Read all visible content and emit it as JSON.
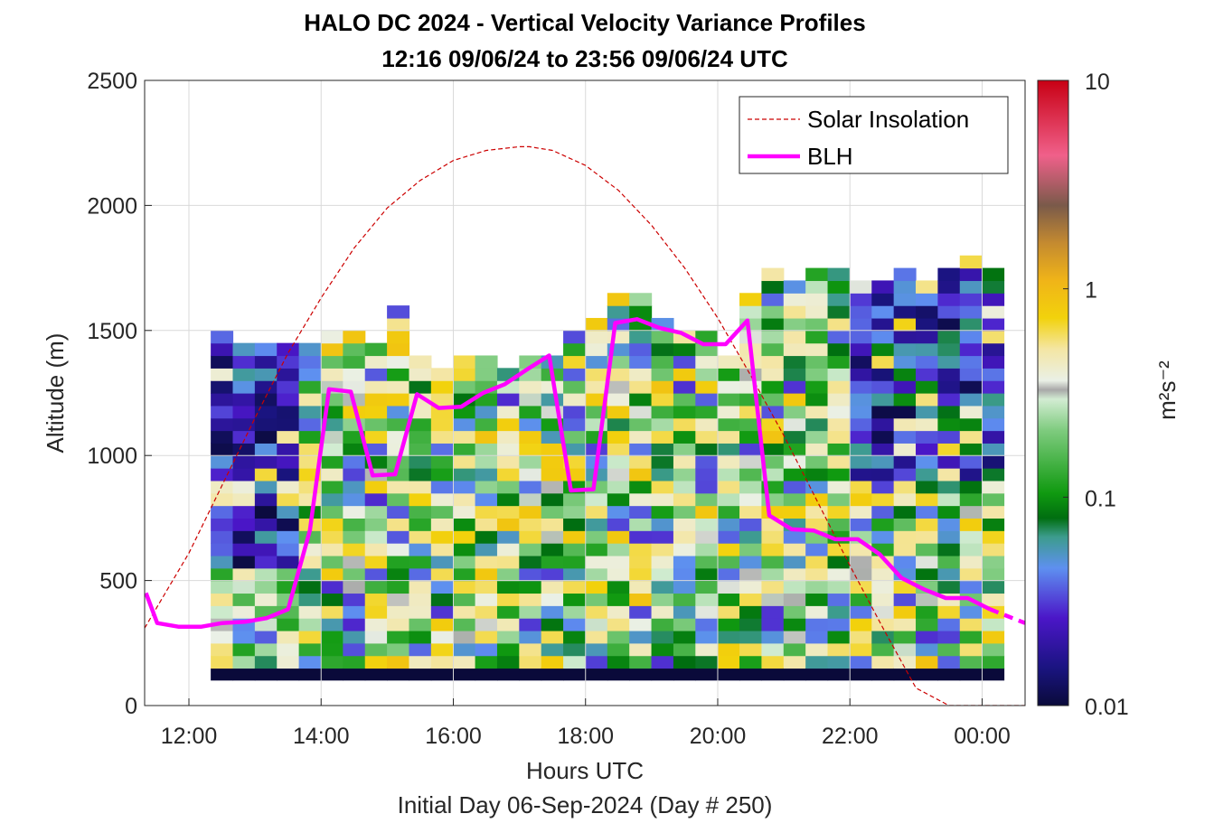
{
  "chart_data": {
    "type": "heatmap",
    "title_line1": "HALO DC 2024 - Vertical Velocity Variance Profiles",
    "title_line2": "12:16 09/06/24 to 23:56 09/06/24  UTC",
    "xlabel": "Hours UTC",
    "xlabel2": "Initial Day 06-Sep-2024 (Day # 250)",
    "ylabel": "Altitude (m)",
    "colorbar_label": "m²s⁻²",
    "colorbar_scale": "log",
    "colorbar_range": [
      0.01,
      10
    ],
    "colorbar_ticks": [
      "0.01",
      "0.1",
      "1",
      "10"
    ],
    "x_range_hours": [
      11.33,
      24.65
    ],
    "y_range": [
      0,
      2500
    ],
    "x_ticks": [
      {
        "v": 12,
        "label": "12:00"
      },
      {
        "v": 14,
        "label": "14:00"
      },
      {
        "v": 16,
        "label": "16:00"
      },
      {
        "v": 18,
        "label": "18:00"
      },
      {
        "v": 20,
        "label": "20:00"
      },
      {
        "v": 22,
        "label": "22:00"
      },
      {
        "v": 24,
        "label": "00:00"
      }
    ],
    "y_ticks": [
      {
        "v": 0,
        "label": "0"
      },
      {
        "v": 500,
        "label": "500"
      },
      {
        "v": 1000,
        "label": "1000"
      },
      {
        "v": 1500,
        "label": "1500"
      },
      {
        "v": 2000,
        "label": "2000"
      },
      {
        "v": 2500,
        "label": "2500"
      }
    ],
    "grid": true,
    "legend_position": "top-right",
    "series": [
      {
        "name": "Solar Insolation",
        "style": "dashed",
        "color": "#cc0000",
        "x": [
          11.33,
          12.0,
          12.5,
          13.0,
          13.5,
          14.0,
          14.5,
          15.0,
          15.5,
          16.0,
          16.5,
          17.0,
          17.15,
          17.5,
          18.0,
          18.5,
          19.0,
          19.5,
          20.0,
          20.5,
          21.0,
          21.5,
          22.0,
          22.5,
          23.0,
          23.5,
          23.8,
          24.65
        ],
        "y": [
          310,
          610,
          880,
          1150,
          1410,
          1630,
          1830,
          1990,
          2100,
          2180,
          2220,
          2235,
          2235,
          2220,
          2160,
          2060,
          1920,
          1750,
          1550,
          1320,
          1080,
          820,
          560,
          310,
          70,
          0,
          0,
          0
        ]
      },
      {
        "name": "BLH",
        "style": "solid",
        "color": "#ff00ff",
        "x": [
          11.35,
          11.52,
          11.85,
          12.18,
          12.5,
          12.85,
          13.18,
          13.5,
          13.83,
          14.12,
          14.45,
          14.78,
          15.12,
          15.45,
          15.78,
          16.12,
          16.45,
          16.78,
          17.12,
          17.45,
          17.78,
          18.12,
          18.45,
          18.78,
          19.12,
          19.45,
          19.78,
          20.12,
          20.45,
          20.78,
          21.12,
          21.45,
          21.78,
          22.12,
          22.45,
          22.78,
          23.12,
          23.45,
          23.78,
          24.12
        ],
        "y": [
          450,
          330,
          315,
          315,
          330,
          335,
          350,
          385,
          700,
          1265,
          1255,
          920,
          925,
          1245,
          1190,
          1195,
          1250,
          1285,
          1345,
          1400,
          860,
          865,
          1530,
          1545,
          1510,
          1490,
          1445,
          1445,
          1540,
          760,
          705,
          700,
          665,
          665,
          605,
          510,
          465,
          430,
          430,
          385
        ]
      },
      {
        "name": "BLH",
        "style": "dashed",
        "color": "#ff00ff",
        "x": [
          24.12,
          24.65
        ],
        "y": [
          385,
          330
        ]
      }
    ],
    "heatmap_grid": {
      "x_start_hours": 12.33,
      "column_width_hours": 0.3333,
      "columns": 36,
      "bin_height_m": 50,
      "lowest_row_value": 0.01,
      "lowest_row_range_m": [
        100,
        150
      ],
      "top_heights_m": [
        1480,
        1430,
        1430,
        1420,
        1440,
        1480,
        1470,
        1410,
        1580,
        1400,
        1330,
        1400,
        1380,
        1340,
        1400,
        1380,
        1460,
        1540,
        1620,
        1620,
        1520,
        1470,
        1460,
        1400,
        1650,
        1710,
        1670,
        1720,
        1710,
        1680,
        1670,
        1720,
        1700,
        1720,
        1770,
        1730
      ]
    }
  }
}
